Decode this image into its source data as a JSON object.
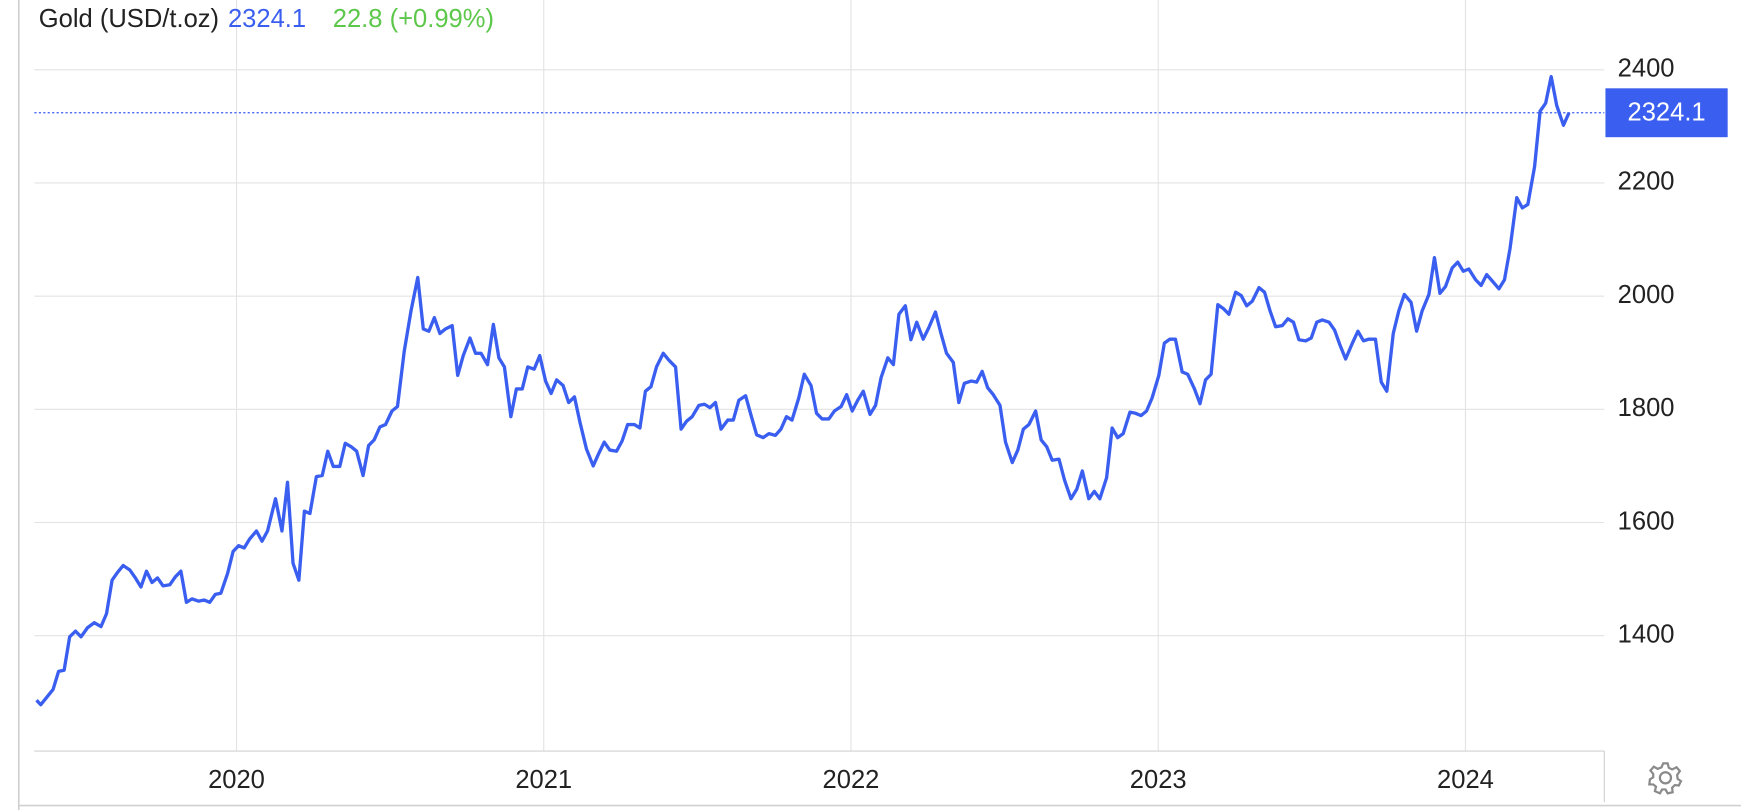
{
  "chart_data": {
    "type": "line",
    "title": "Gold (USD/t.oz)",
    "last": 2324.1,
    "change": "22.8 (+0.99%)",
    "color": "#3a5ff0",
    "change_color": "#5cc74a",
    "grid": true,
    "xlim": [
      2019.342,
      2024.452
    ],
    "xticks": [
      2020,
      2021,
      2022,
      2023,
      2024
    ],
    "ylim": [
      1196,
      2435
    ],
    "yticks": [
      1400,
      1600,
      1800,
      2000,
      2200,
      2400
    ],
    "x": [
      2019.349,
      2019.363,
      2019.403,
      2019.421,
      2019.439,
      2019.457,
      2019.476,
      2019.494,
      2019.515,
      2019.537,
      2019.559,
      2019.577,
      2019.595,
      2019.613,
      2019.631,
      2019.653,
      2019.671,
      2019.689,
      2019.707,
      2019.725,
      2019.743,
      2019.761,
      2019.783,
      2019.801,
      2019.819,
      2019.837,
      2019.855,
      2019.877,
      2019.895,
      2019.913,
      2019.931,
      2019.949,
      2019.971,
      2019.989,
      2020.007,
      2020.025,
      2020.043,
      2020.065,
      2020.083,
      2020.101,
      2020.127,
      2020.148,
      2020.166,
      2020.184,
      2020.203,
      2020.221,
      2020.239,
      2020.26,
      2020.279,
      2020.297,
      2020.315,
      2020.336,
      2020.354,
      2020.373,
      2020.391,
      2020.412,
      2020.43,
      2020.448,
      2020.467,
      2020.485,
      2020.506,
      2020.524,
      2020.546,
      2020.568,
      2020.59,
      2020.608,
      2020.626,
      2020.644,
      2020.662,
      2020.68,
      2020.702,
      2020.72,
      2020.738,
      2020.76,
      2020.778,
      2020.796,
      2020.817,
      2020.836,
      2020.854,
      2020.872,
      2020.893,
      2020.911,
      2020.93,
      2020.948,
      2020.969,
      2020.987,
      2021.006,
      2021.024,
      2021.042,
      2021.063,
      2021.081,
      2021.1,
      2021.118,
      2021.139,
      2021.161,
      2021.179,
      2021.197,
      2021.215,
      2021.237,
      2021.255,
      2021.273,
      2021.295,
      2021.313,
      2021.331,
      2021.349,
      2021.367,
      2021.389,
      2021.407,
      2021.429,
      2021.447,
      2021.465,
      2021.483,
      2021.505,
      2021.523,
      2021.541,
      2021.559,
      2021.577,
      2021.599,
      2021.617,
      2021.635,
      2021.657,
      2021.675,
      2021.693,
      2021.714,
      2021.733,
      2021.754,
      2021.772,
      2021.79,
      2021.808,
      2021.83,
      2021.848,
      2021.87,
      2021.888,
      2021.906,
      2021.928,
      2021.946,
      2021.968,
      2021.986,
      2022.004,
      2022.022,
      2022.04,
      2022.062,
      2022.08,
      2022.098,
      2022.12,
      2022.138,
      2022.156,
      2022.177,
      2022.195,
      2022.214,
      2022.235,
      2022.253,
      2022.275,
      2022.293,
      2022.311,
      2022.333,
      2022.351,
      2022.369,
      2022.391,
      2022.409,
      2022.427,
      2022.445,
      2022.463,
      2022.485,
      2022.503,
      2022.525,
      2022.543,
      2022.561,
      2022.579,
      2022.601,
      2022.619,
      2022.637,
      2022.655,
      2022.677,
      2022.695,
      2022.716,
      2022.735,
      2022.753,
      2022.774,
      2022.792,
      2022.81,
      2022.832,
      2022.85,
      2022.868,
      2022.886,
      2022.908,
      2022.926,
      2022.944,
      2022.962,
      2022.98,
      2023.002,
      2023.02,
      2023.038,
      2023.056,
      2023.078,
      2023.096,
      2023.118,
      2023.136,
      2023.154,
      2023.172,
      2023.194,
      2023.212,
      2023.23,
      2023.252,
      2023.27,
      2023.288,
      2023.306,
      2023.328,
      2023.346,
      2023.364,
      2023.382,
      2023.404,
      2023.422,
      2023.44,
      2023.458,
      2023.48,
      2023.498,
      2023.516,
      2023.534,
      2023.556,
      2023.574,
      2023.592,
      2023.61,
      2023.632,
      2023.65,
      2023.668,
      2023.686,
      2023.707,
      2023.726,
      2023.744,
      2023.765,
      2023.783,
      2023.801,
      2023.823,
      2023.841,
      2023.859,
      2023.881,
      2023.899,
      2023.917,
      2023.935,
      2023.957,
      2023.975,
      2023.993,
      2024.011,
      2024.033,
      2024.051,
      2024.069,
      2024.087,
      2024.109,
      2024.127,
      2024.145,
      2024.167,
      2024.185,
      2024.203,
      2024.225,
      2024.243,
      2024.261,
      2024.279,
      2024.297,
      2024.319,
      2024.337
    ],
    "values": [
      1286,
      1278,
      1305,
      1337,
      1339,
      1398,
      1408,
      1398,
      1414,
      1423,
      1416,
      1439,
      1498,
      1512,
      1524,
      1516,
      1502,
      1486,
      1514,
      1494,
      1502,
      1488,
      1490,
      1504,
      1514,
      1459,
      1465,
      1461,
      1463,
      1459,
      1473,
      1475,
      1510,
      1549,
      1559,
      1555,
      1571,
      1585,
      1567,
      1585,
      1642,
      1585,
      1671,
      1528,
      1498,
      1620,
      1616,
      1681,
      1683,
      1726,
      1699,
      1699,
      1740,
      1734,
      1726,
      1683,
      1736,
      1746,
      1769,
      1773,
      1797,
      1805,
      1903,
      1974,
      2033,
      1942,
      1938,
      1962,
      1934,
      1942,
      1948,
      1860,
      1895,
      1926,
      1899,
      1899,
      1879,
      1950,
      1891,
      1875,
      1787,
      1836,
      1836,
      1875,
      1871,
      1895,
      1850,
      1828,
      1852,
      1842,
      1812,
      1822,
      1777,
      1730,
      1700,
      1722,
      1742,
      1728,
      1726,
      1744,
      1773,
      1773,
      1767,
      1832,
      1840,
      1875,
      1899,
      1887,
      1875,
      1765,
      1779,
      1787,
      1807,
      1809,
      1803,
      1812,
      1765,
      1781,
      1781,
      1816,
      1824,
      1789,
      1755,
      1750,
      1757,
      1754,
      1765,
      1787,
      1781,
      1820,
      1862,
      1842,
      1793,
      1783,
      1783,
      1797,
      1805,
      1826,
      1797,
      1816,
      1832,
      1791,
      1807,
      1856,
      1891,
      1879,
      1968,
      1983,
      1923,
      1954,
      1924,
      1944,
      1972,
      1934,
      1899,
      1883,
      1812,
      1846,
      1850,
      1848,
      1867,
      1838,
      1826,
      1807,
      1742,
      1706,
      1728,
      1765,
      1773,
      1797,
      1746,
      1734,
      1710,
      1712,
      1675,
      1642,
      1659,
      1691,
      1642,
      1655,
      1642,
      1679,
      1767,
      1750,
      1757,
      1795,
      1793,
      1789,
      1797,
      1820,
      1860,
      1917,
      1924,
      1924,
      1866,
      1862,
      1836,
      1810,
      1852,
      1862,
      1985,
      1978,
      1968,
      2007,
      2001,
      1983,
      1991,
      2015,
      2007,
      1974,
      1946,
      1948,
      1960,
      1954,
      1923,
      1921,
      1926,
      1954,
      1958,
      1954,
      1940,
      1913,
      1889,
      1917,
      1938,
      1921,
      1924,
      1924,
      1848,
      1832,
      1934,
      1974,
      2003,
      1989,
      1938,
      1974,
      2003,
      2068,
      2005,
      2017,
      2050,
      2060,
      2044,
      2048,
      2029,
      2019,
      2038,
      2027,
      2013,
      2029,
      2084,
      2174,
      2156,
      2162,
      2229,
      2327,
      2341,
      2388,
      2337,
      2302,
      2324.1
    ]
  }
}
